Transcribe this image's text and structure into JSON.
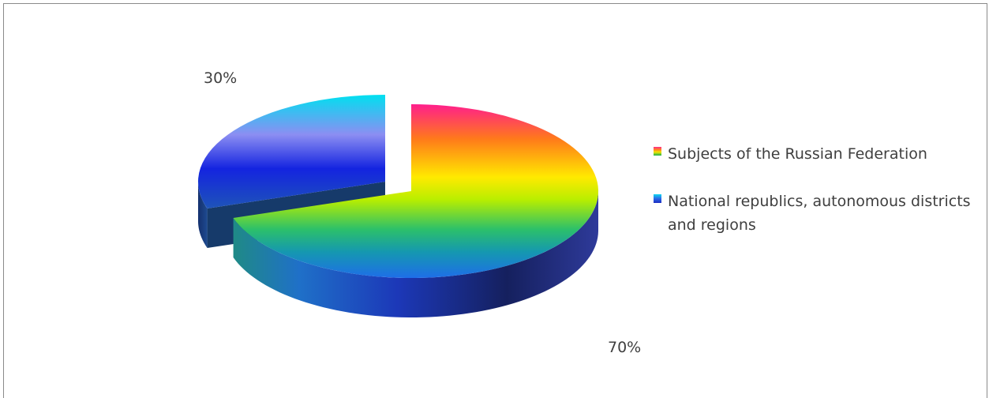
{
  "chart_data": {
    "type": "pie",
    "style": "3d-exploded",
    "categories": [
      "Subjects of the Russian Federation",
      "National republics, autonomous districts and regions"
    ],
    "values": [
      70,
      30
    ],
    "data_labels": [
      "70%",
      "30%"
    ],
    "legend_position": "right",
    "colors": {
      "slice1_gradient": [
        "#ff1e8c",
        "#ff7a1a",
        "#ffe600",
        "#c8f000",
        "#2ec86e",
        "#1a9aa8",
        "#1e78e6",
        "#1a3cc8"
      ],
      "slice2_gradient": [
        "#00e4f0",
        "#8a8cf0",
        "#1a2ce0",
        "#1a5ab0"
      ]
    }
  }
}
